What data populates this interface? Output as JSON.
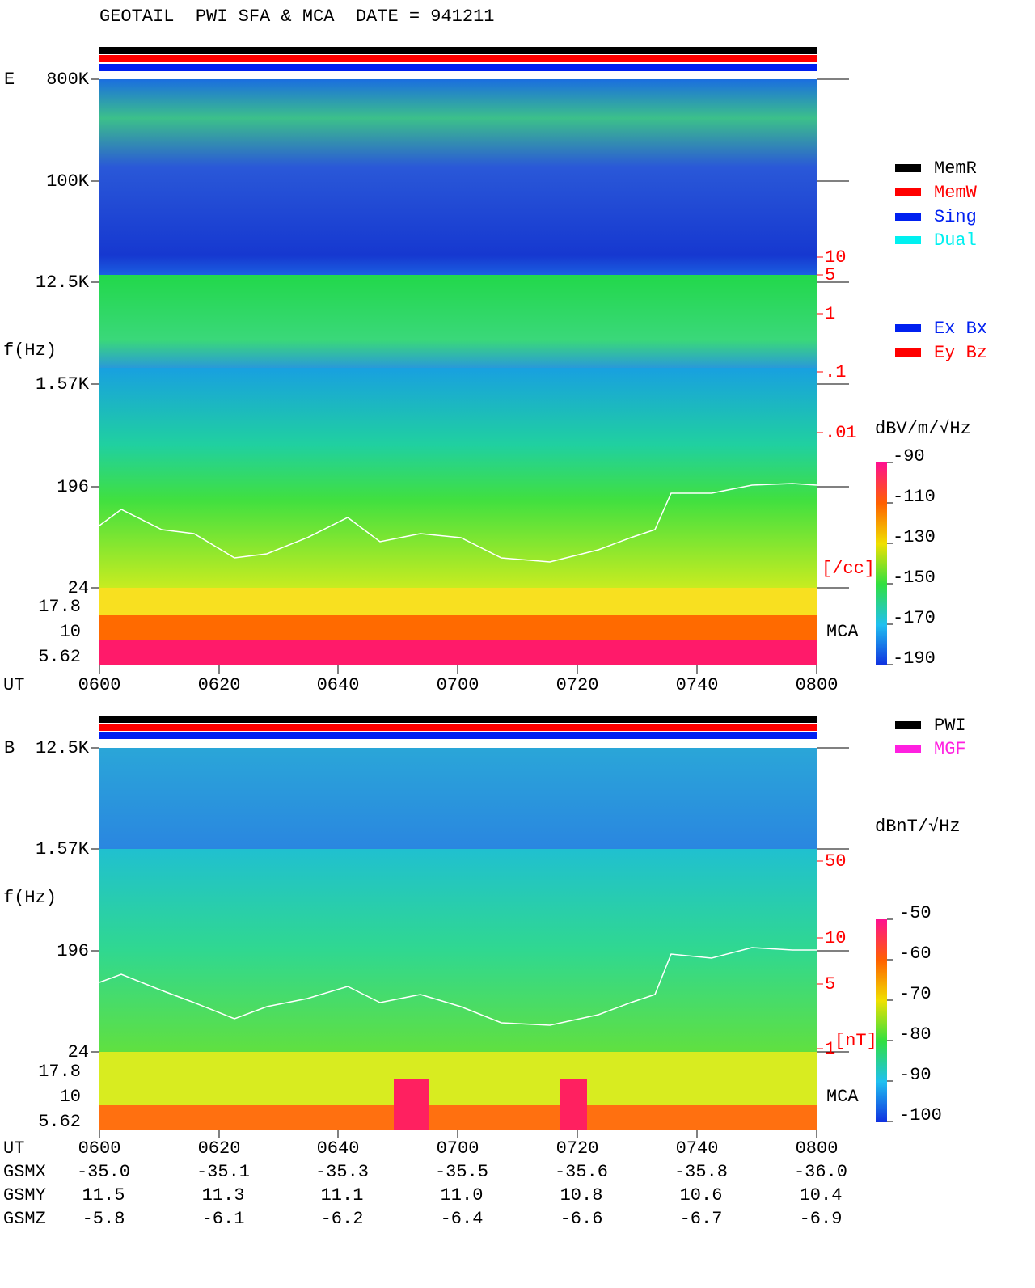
{
  "title": "GEOTAIL  PWI SFA & MCA  DATE = 941211",
  "panel_e": {
    "label": "E",
    "y_axis_label": "f(Hz)",
    "freq_ticks": [
      "800K",
      "100K",
      "12.5K",
      "1.57K",
      "196",
      "24"
    ],
    "mca_ticks": [
      "17.8",
      "10",
      "5.62"
    ],
    "density_ticks": [
      "10",
      "5",
      "1",
      ".1",
      ".01"
    ],
    "density_unit": "[/cc]",
    "mca_label": "MCA",
    "time_label": "UT",
    "time_ticks": [
      "0600",
      "0620",
      "0640",
      "0700",
      "0720",
      "0740",
      "0800"
    ],
    "legend_mode": [
      "MemR",
      "MemW",
      "Sing",
      "Dual"
    ],
    "legend_antenna": [
      "Ex Bx",
      "Ey Bz"
    ],
    "colorbar": {
      "unit": "dBV/m/√Hz",
      "ticks": [
        "-90",
        "-110",
        "-130",
        "-150",
        "-170",
        "-190"
      ]
    }
  },
  "panel_b": {
    "label": "B",
    "y_axis_label": "f(Hz)",
    "freq_ticks": [
      "12.5K",
      "1.57K",
      "196",
      "24"
    ],
    "mca_ticks": [
      "17.8",
      "10",
      "5.62"
    ],
    "field_ticks": [
      "50",
      "10",
      "5",
      "1"
    ],
    "field_unit": "[nT]",
    "mca_label": "MCA",
    "time_label": "UT",
    "time_ticks": [
      "0600",
      "0620",
      "0640",
      "0700",
      "0720",
      "0740",
      "0800"
    ],
    "legend_source": [
      "PWI",
      "MGF"
    ],
    "colorbar": {
      "unit": "dBnT/√Hz",
      "ticks": [
        "-50",
        "-60",
        "-70",
        "-80",
        "-90",
        "-100"
      ]
    }
  },
  "orbit": {
    "rows": [
      [
        "GSMX",
        "-35.0",
        "-35.1",
        "-35.3",
        "-35.5",
        "-35.6",
        "-35.8",
        "-36.0"
      ],
      [
        "GSMY",
        "11.5",
        "11.3",
        "11.1",
        "11.0",
        "10.8",
        "10.6",
        "10.4"
      ],
      [
        "GSMZ",
        "-5.8",
        "-6.1",
        "-6.2",
        "-6.4",
        "-6.6",
        "-6.7",
        "-6.9"
      ]
    ]
  }
}
